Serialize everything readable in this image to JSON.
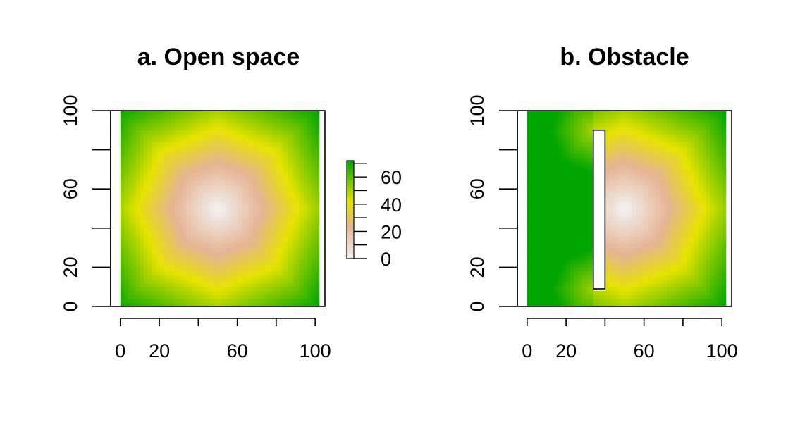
{
  "colors": {
    "low": "#f2f2f2",
    "mid_low": "#e6b394",
    "mid": "#e6e300",
    "high": "#00a600"
  },
  "legend": {
    "ticks": [
      0,
      20,
      40,
      60
    ],
    "range": [
      0,
      72
    ],
    "minor_step": 10
  },
  "chart_data": [
    {
      "type": "heatmap",
      "title": "a. Open space",
      "xlabel": "",
      "ylabel": "",
      "xlim": [
        -5,
        105
      ],
      "ylim": [
        0,
        100
      ],
      "grid_extent": [
        0,
        102
      ],
      "x_ticks": [
        0,
        20,
        40,
        60,
        80,
        100
      ],
      "x_tick_labels": [
        "0",
        "20",
        "",
        "60",
        "",
        "100"
      ],
      "y_ticks": [
        0,
        20,
        40,
        60,
        80,
        100
      ],
      "y_tick_labels": [
        "0",
        "20",
        "",
        "60",
        "",
        "100"
      ],
      "source": [
        50,
        50
      ],
      "obstacle": null,
      "value_range": [
        0,
        72
      ]
    },
    {
      "type": "heatmap",
      "title": "b. Obstacle",
      "xlabel": "",
      "ylabel": "",
      "xlim": [
        -5,
        105
      ],
      "ylim": [
        0,
        100
      ],
      "grid_extent": [
        0,
        102
      ],
      "x_ticks": [
        0,
        20,
        40,
        60,
        80,
        100
      ],
      "x_tick_labels": [
        "0",
        "20",
        "",
        "60",
        "",
        "100"
      ],
      "y_ticks": [
        0,
        20,
        40,
        60,
        80,
        100
      ],
      "y_tick_labels": [
        "0",
        "20",
        "",
        "60",
        "",
        "100"
      ],
      "source": [
        50,
        50
      ],
      "obstacle": {
        "x": [
          34,
          40
        ],
        "y": [
          9,
          90
        ]
      },
      "value_range": [
        0,
        72
      ]
    }
  ]
}
